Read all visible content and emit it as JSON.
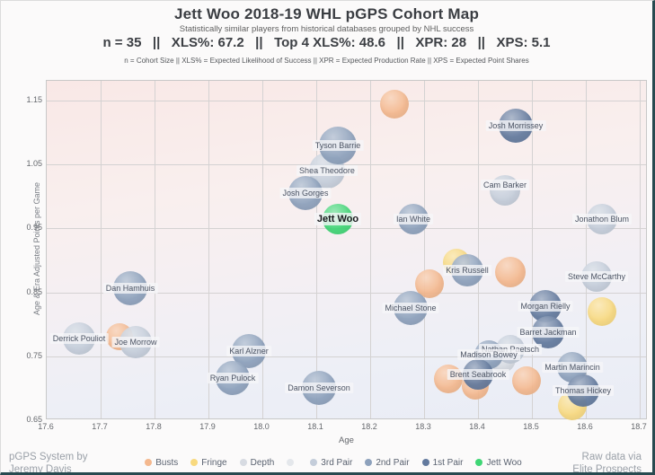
{
  "header": {
    "title": "Jett Woo 2018-19 WHL pGPS Cohort Map",
    "subtitle": "Statistically similar players from historical databases grouped by NHL success",
    "stats_line": "n = 35   ||   XLS%: 67.2   ||   Top 4 XLS%: 48.6   ||   XPR: 28   ||   XPS: 5.1",
    "stats": {
      "n": 35,
      "xls_pct": 67.2,
      "top4_xls_pct": 48.6,
      "xpr": 28,
      "xps": 5.1
    },
    "stats_note": "n = Cohort Size || XLS% = Expected Likelihood of Success || XPR = Expected Production Rate || XPS = Expected Point Shares"
  },
  "footer": {
    "left_line1": "pGPS System by",
    "left_line2": "Jeremy Davis",
    "right_line1": "Raw data via",
    "right_line2": "Elite Prospects"
  },
  "legend": {
    "items": [
      {
        "key": "bust",
        "label": "Busts",
        "color": "#f4b88e"
      },
      {
        "key": "fringe",
        "label": "Fringe",
        "color": "#f8d97e"
      },
      {
        "key": "depth",
        "label": "Depth",
        "color": "#d7dbe2"
      },
      {
        "key": "blank",
        "label": "",
        "color": "#e4e7eb"
      },
      {
        "key": "pair3",
        "label": "3rd Pair",
        "color": "#c4cdda"
      },
      {
        "key": "pair2",
        "label": "2nd Pair",
        "color": "#8da1bc"
      },
      {
        "key": "pair1",
        "label": "1st Pair",
        "color": "#637a9e"
      },
      {
        "key": "jett",
        "label": "Jett Woo",
        "color": "#3fd675"
      }
    ]
  },
  "chart_data": {
    "type": "scatter",
    "title": "Jett Woo 2018-19 WHL pGPS Cohort Map",
    "xlabel": "Age",
    "ylabel": "Age & Era Adjusted Points per Game",
    "xlim": [
      17.6,
      18.715
    ],
    "ylim": [
      0.65,
      1.181
    ],
    "x_ticks": [
      17.6,
      17.7,
      17.8,
      17.9,
      18.0,
      18.1,
      18.2,
      18.3,
      18.4,
      18.5,
      18.6,
      18.7
    ],
    "y_ticks": [
      0.65,
      0.75,
      0.85,
      0.95,
      1.05,
      1.15
    ],
    "grid": true,
    "legend_position": "bottom",
    "tiers": {
      "bust": "#f4b88e",
      "fringe": "#f8d97e",
      "depth": "#d7dbe2",
      "pair3": "#c4cdda",
      "pair2": "#8da1bc",
      "pair1": "#637a9e",
      "jett": "#3fd675"
    },
    "points": [
      {
        "name": "",
        "tier": "bust",
        "age": 18.245,
        "ppg": 1.145,
        "r": 16
      },
      {
        "name": "Josh Morrissey",
        "tier": "pair1",
        "age": 18.47,
        "ppg": 1.11,
        "r": 19
      },
      {
        "name": "Tyson Barrie",
        "tier": "pair2",
        "age": 18.14,
        "ppg": 1.08,
        "r": 21
      },
      {
        "name": "Shea Theodore",
        "tier": "pair3",
        "age": 18.12,
        "ppg": 1.04,
        "r": 20
      },
      {
        "name": "Josh Gorges",
        "tier": "pair2",
        "age": 18.08,
        "ppg": 1.005,
        "r": 19
      },
      {
        "name": "Cam Barker",
        "tier": "pair3",
        "age": 18.45,
        "ppg": 1.01,
        "r": 17,
        "dy": -6
      },
      {
        "name": "Ian White",
        "tier": "pair2",
        "age": 18.28,
        "ppg": 0.965,
        "r": 17
      },
      {
        "name": "Jonathon Blum",
        "tier": "pair3",
        "age": 18.63,
        "ppg": 0.965,
        "r": 17
      },
      {
        "name": "",
        "tier": "fringe",
        "age": 18.36,
        "ppg": 0.897,
        "r": 15
      },
      {
        "name": "Kris Russell",
        "tier": "pair2",
        "age": 18.38,
        "ppg": 0.885,
        "r": 18
      },
      {
        "name": "",
        "tier": "bust",
        "age": 18.46,
        "ppg": 0.882,
        "r": 17
      },
      {
        "name": "",
        "tier": "bust",
        "age": 18.31,
        "ppg": 0.864,
        "r": 16
      },
      {
        "name": "Steve McCarthy",
        "tier": "pair3",
        "age": 18.62,
        "ppg": 0.875,
        "r": 17
      },
      {
        "name": "Dan Hamhuis",
        "tier": "pair2",
        "age": 17.755,
        "ppg": 0.856,
        "r": 19
      },
      {
        "name": "Michael Stone",
        "tier": "pair2",
        "age": 18.275,
        "ppg": 0.826,
        "r": 19
      },
      {
        "name": "Morgan Rielly",
        "tier": "pair1",
        "age": 18.525,
        "ppg": 0.828,
        "r": 18
      },
      {
        "name": "",
        "tier": "fringe",
        "age": 18.63,
        "ppg": 0.82,
        "r": 16
      },
      {
        "name": "Derrick Pouliot",
        "tier": "pair3",
        "age": 17.66,
        "ppg": 0.778,
        "r": 18
      },
      {
        "name": "",
        "tier": "bust",
        "age": 17.735,
        "ppg": 0.781,
        "r": 15
      },
      {
        "name": "Joe Morrow",
        "tier": "pair3",
        "age": 17.765,
        "ppg": 0.772,
        "r": 18
      },
      {
        "name": "Karl Alzner",
        "tier": "pair2",
        "age": 17.975,
        "ppg": 0.758,
        "r": 19
      },
      {
        "name": "Barret Jackman",
        "tier": "pair1",
        "age": 18.53,
        "ppg": 0.788,
        "r": 18
      },
      {
        "name": "Nathan Paetsch",
        "tier": "pair3",
        "age": 18.46,
        "ppg": 0.761,
        "r": 16
      },
      {
        "name": "",
        "tier": "depth",
        "age": 18.445,
        "ppg": 0.745,
        "r": 15
      },
      {
        "name": "Madison Bowey",
        "tier": "pair2",
        "age": 18.42,
        "ppg": 0.752,
        "r": 16
      },
      {
        "name": "",
        "tier": "bust",
        "age": 18.345,
        "ppg": 0.715,
        "r": 16
      },
      {
        "name": "",
        "tier": "bust",
        "age": 18.395,
        "ppg": 0.703,
        "r": 15
      },
      {
        "name": "",
        "tier": "bust",
        "age": 18.49,
        "ppg": 0.712,
        "r": 16
      },
      {
        "name": "Brent Seabrook",
        "tier": "pair1",
        "age": 18.4,
        "ppg": 0.722,
        "r": 17
      },
      {
        "name": "Ryan Pulock",
        "tier": "pair2",
        "age": 17.945,
        "ppg": 0.716,
        "r": 19
      },
      {
        "name": "Martin Marincin",
        "tier": "pair2",
        "age": 18.575,
        "ppg": 0.733,
        "r": 17
      },
      {
        "name": "Damon Severson",
        "tier": "pair2",
        "age": 18.105,
        "ppg": 0.7,
        "r": 19
      },
      {
        "name": "",
        "tier": "fringe",
        "age": 18.575,
        "ppg": 0.673,
        "r": 16
      },
      {
        "name": "Thomas Hickey",
        "tier": "pair1",
        "age": 18.595,
        "ppg": 0.696,
        "r": 18
      },
      {
        "name": "Jett Woo",
        "tier": "jett",
        "age": 18.14,
        "ppg": 0.965,
        "r": 17
      }
    ]
  }
}
